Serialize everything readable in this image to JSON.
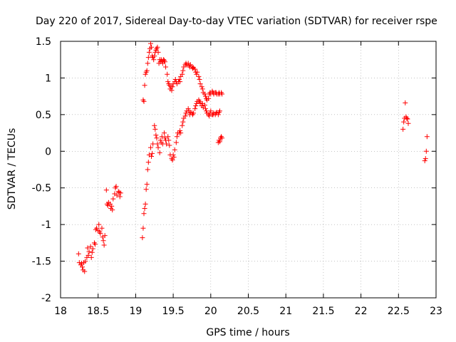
{
  "chart_data": {
    "type": "scatter",
    "title": "Day 220 of 2017, Sidereal Day-to-day VTEC variation (SDTVAR) for receiver rspe",
    "xlabel": "GPS time / hours",
    "ylabel": "SDTVAR / TECUs",
    "xlim": [
      18,
      23
    ],
    "ylim": [
      -2,
      1.5
    ],
    "xticks": [
      18,
      18.5,
      19,
      19.5,
      20,
      20.5,
      21,
      21.5,
      22,
      22.5,
      23
    ],
    "xtick_labels": [
      "18",
      "18.5",
      "19",
      "19.5",
      "20",
      "20.5",
      "21",
      "21.5",
      "22",
      "22.5",
      "23"
    ],
    "yticks": [
      -2,
      -1.5,
      -1,
      -0.5,
      0,
      0.5,
      1,
      1.5
    ],
    "ytick_labels": [
      "-2",
      "-1.5",
      "-1",
      "-0.5",
      "0",
      "0.5",
      "1",
      "1.5"
    ],
    "marker": "+",
    "color": "#ff0000",
    "series": [
      {
        "name": "SDTVAR",
        "points": [
          [
            18.24,
            -1.4
          ],
          [
            18.25,
            -1.52
          ],
          [
            18.27,
            -1.55
          ],
          [
            18.28,
            -1.53
          ],
          [
            18.29,
            -1.58
          ],
          [
            18.3,
            -1.62
          ],
          [
            18.31,
            -1.52
          ],
          [
            18.32,
            -1.64
          ],
          [
            18.33,
            -1.5
          ],
          [
            18.35,
            -1.45
          ],
          [
            18.36,
            -1.32
          ],
          [
            18.37,
            -1.42
          ],
          [
            18.38,
            -1.37
          ],
          [
            18.4,
            -1.3
          ],
          [
            18.41,
            -1.45
          ],
          [
            18.42,
            -1.38
          ],
          [
            18.43,
            -1.33
          ],
          [
            18.45,
            -1.25
          ],
          [
            18.46,
            -1.27
          ],
          [
            18.47,
            -1.07
          ],
          [
            18.48,
            -1.05
          ],
          [
            18.5,
            -1.08
          ],
          [
            18.51,
            -1.0
          ],
          [
            18.52,
            -1.1
          ],
          [
            18.53,
            -1.12
          ],
          [
            18.55,
            -1.05
          ],
          [
            18.56,
            -1.17
          ],
          [
            18.57,
            -1.22
          ],
          [
            18.58,
            -1.28
          ],
          [
            18.59,
            -1.15
          ],
          [
            18.61,
            -0.53
          ],
          [
            18.62,
            -0.72
          ],
          [
            18.63,
            -0.74
          ],
          [
            18.64,
            -0.7
          ],
          [
            18.66,
            -0.72
          ],
          [
            18.67,
            -0.78
          ],
          [
            18.68,
            -0.75
          ],
          [
            18.69,
            -0.8
          ],
          [
            18.7,
            -0.65
          ],
          [
            18.72,
            -0.58
          ],
          [
            18.73,
            -0.5
          ],
          [
            18.74,
            -0.48
          ],
          [
            18.75,
            -0.6
          ],
          [
            18.77,
            -0.55
          ],
          [
            18.78,
            -0.56
          ],
          [
            18.79,
            -0.62
          ],
          [
            18.8,
            -0.57
          ],
          [
            19.09,
            -1.18
          ],
          [
            19.1,
            -1.05
          ],
          [
            19.11,
            -0.85
          ],
          [
            19.12,
            -0.78
          ],
          [
            19.13,
            -0.72
          ],
          [
            19.14,
            -0.52
          ],
          [
            19.15,
            -0.45
          ],
          [
            19.16,
            -0.25
          ],
          [
            19.17,
            -0.15
          ],
          [
            19.18,
            -0.05
          ],
          [
            19.2,
            0.05
          ],
          [
            19.21,
            -0.07
          ],
          [
            19.22,
            -0.03
          ],
          [
            19.23,
            0.1
          ],
          [
            19.25,
            0.35
          ],
          [
            19.26,
            0.3
          ],
          [
            19.27,
            0.22
          ],
          [
            19.28,
            0.18
          ],
          [
            19.29,
            0.1
          ],
          [
            19.3,
            0.05
          ],
          [
            19.32,
            -0.02
          ],
          [
            19.33,
            0.15
          ],
          [
            19.34,
            0.12
          ],
          [
            19.35,
            0.2
          ],
          [
            19.36,
            0.1
          ],
          [
            19.38,
            0.25
          ],
          [
            19.39,
            0.18
          ],
          [
            19.4,
            0.15
          ],
          [
            19.41,
            0.1
          ],
          [
            19.43,
            0.2
          ],
          [
            19.44,
            0.15
          ],
          [
            19.45,
            0.08
          ],
          [
            19.46,
            -0.05
          ],
          [
            19.48,
            -0.1
          ],
          [
            19.49,
            -0.12
          ],
          [
            19.5,
            -0.05
          ],
          [
            19.51,
            -0.08
          ],
          [
            19.52,
            0.02
          ],
          [
            19.54,
            0.12
          ],
          [
            19.55,
            0.2
          ],
          [
            19.56,
            0.25
          ],
          [
            19.58,
            0.25
          ],
          [
            19.59,
            0.28
          ],
          [
            19.6,
            0.25
          ],
          [
            19.62,
            0.35
          ],
          [
            19.63,
            0.4
          ],
          [
            19.64,
            0.45
          ],
          [
            19.66,
            0.48
          ],
          [
            19.67,
            0.52
          ],
          [
            19.68,
            0.55
          ],
          [
            19.7,
            0.58
          ],
          [
            19.71,
            0.55
          ],
          [
            19.72,
            0.5
          ],
          [
            19.73,
            0.53
          ],
          [
            19.75,
            0.52
          ],
          [
            19.76,
            0.5
          ],
          [
            19.77,
            0.52
          ],
          [
            19.79,
            0.58
          ],
          [
            19.8,
            0.62
          ],
          [
            19.81,
            0.65
          ],
          [
            19.82,
            0.68
          ],
          [
            19.84,
            0.7
          ],
          [
            19.85,
            0.68
          ],
          [
            19.86,
            0.66
          ],
          [
            19.88,
            0.62
          ],
          [
            19.89,
            0.65
          ],
          [
            19.9,
            0.6
          ],
          [
            19.92,
            0.63
          ],
          [
            19.93,
            0.58
          ],
          [
            19.94,
            0.55
          ],
          [
            19.95,
            0.52
          ],
          [
            19.97,
            0.5
          ],
          [
            19.98,
            0.48
          ],
          [
            19.99,
            0.52
          ],
          [
            20.0,
            0.55
          ],
          [
            20.02,
            0.5
          ],
          [
            20.03,
            0.5
          ],
          [
            20.04,
            0.52
          ],
          [
            20.06,
            0.5
          ],
          [
            20.07,
            0.52
          ],
          [
            20.08,
            0.53
          ],
          [
            20.1,
            0.5
          ],
          [
            20.11,
            0.53
          ],
          [
            20.12,
            0.55
          ],
          [
            20.1,
            0.12
          ],
          [
            20.11,
            0.15
          ],
          [
            20.12,
            0.13
          ],
          [
            20.13,
            0.18
          ],
          [
            20.14,
            0.2
          ],
          [
            20.15,
            0.18
          ],
          [
            19.1,
            0.7
          ],
          [
            19.11,
            0.68
          ],
          [
            19.12,
            0.9
          ],
          [
            19.13,
            1.05
          ],
          [
            19.14,
            1.08
          ],
          [
            19.15,
            1.1
          ],
          [
            19.16,
            1.2
          ],
          [
            19.17,
            1.28
          ],
          [
            19.18,
            1.35
          ],
          [
            19.19,
            1.4
          ],
          [
            19.2,
            1.47
          ],
          [
            19.21,
            1.42
          ],
          [
            19.22,
            1.3
          ],
          [
            19.23,
            1.28
          ],
          [
            19.24,
            1.25
          ],
          [
            19.25,
            1.3
          ],
          [
            19.26,
            1.35
          ],
          [
            19.27,
            1.38
          ],
          [
            19.28,
            1.4
          ],
          [
            19.29,
            1.42
          ],
          [
            19.3,
            1.35
          ],
          [
            19.31,
            1.2
          ],
          [
            19.32,
            1.25
          ],
          [
            19.33,
            1.22
          ],
          [
            19.34,
            1.25
          ],
          [
            19.35,
            1.23
          ],
          [
            19.36,
            1.2
          ],
          [
            19.37,
            1.25
          ],
          [
            19.38,
            1.24
          ],
          [
            19.39,
            1.22
          ],
          [
            19.4,
            1.15
          ],
          [
            19.42,
            1.05
          ],
          [
            19.43,
            0.95
          ],
          [
            19.44,
            0.92
          ],
          [
            19.45,
            0.9
          ],
          [
            19.46,
            0.85
          ],
          [
            19.47,
            0.88
          ],
          [
            19.48,
            0.83
          ],
          [
            19.49,
            0.88
          ],
          [
            19.5,
            0.92
          ],
          [
            19.52,
            0.95
          ],
          [
            19.53,
            0.98
          ],
          [
            19.54,
            0.95
          ],
          [
            19.55,
            0.92
          ],
          [
            19.57,
            0.95
          ],
          [
            19.58,
            0.98
          ],
          [
            19.59,
            0.95
          ],
          [
            19.6,
            1.02
          ],
          [
            19.62,
            1.05
          ],
          [
            19.63,
            1.1
          ],
          [
            19.64,
            1.15
          ],
          [
            19.66,
            1.18
          ],
          [
            19.67,
            1.2
          ],
          [
            19.68,
            1.18
          ],
          [
            19.7,
            1.2
          ],
          [
            19.71,
            1.17
          ],
          [
            19.72,
            1.15
          ],
          [
            19.73,
            1.18
          ],
          [
            19.75,
            1.15
          ],
          [
            19.76,
            1.13
          ],
          [
            19.77,
            1.14
          ],
          [
            19.79,
            1.12
          ],
          [
            19.8,
            1.08
          ],
          [
            19.81,
            1.05
          ],
          [
            19.82,
            1.08
          ],
          [
            19.84,
            1.02
          ],
          [
            19.85,
            0.98
          ],
          [
            19.86,
            0.92
          ],
          [
            19.88,
            0.88
          ],
          [
            19.89,
            0.85
          ],
          [
            19.9,
            0.8
          ],
          [
            19.92,
            0.78
          ],
          [
            19.93,
            0.75
          ],
          [
            19.94,
            0.72
          ],
          [
            19.95,
            0.7
          ],
          [
            19.97,
            0.72
          ],
          [
            19.98,
            0.78
          ],
          [
            19.99,
            0.8
          ],
          [
            20.0,
            0.78
          ],
          [
            20.02,
            0.82
          ],
          [
            20.03,
            0.8
          ],
          [
            20.04,
            0.78
          ],
          [
            20.06,
            0.8
          ],
          [
            20.07,
            0.8
          ],
          [
            20.08,
            0.78
          ],
          [
            20.1,
            0.78
          ],
          [
            20.11,
            0.8
          ],
          [
            20.12,
            0.78
          ],
          [
            20.14,
            0.8
          ],
          [
            20.15,
            0.78
          ],
          [
            22.56,
            0.3
          ],
          [
            22.57,
            0.4
          ],
          [
            22.58,
            0.45
          ],
          [
            22.59,
            0.66
          ],
          [
            22.6,
            0.47
          ],
          [
            22.61,
            0.45
          ],
          [
            22.62,
            0.44
          ],
          [
            22.63,
            0.38
          ],
          [
            22.85,
            -0.13
          ],
          [
            22.86,
            -0.1
          ],
          [
            22.87,
            0.0
          ],
          [
            22.88,
            0.2
          ]
        ]
      }
    ]
  }
}
